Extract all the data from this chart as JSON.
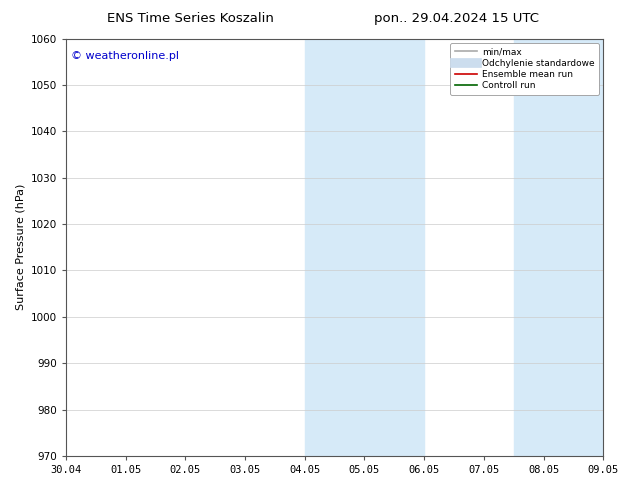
{
  "title_left": "ENS Time Series Koszalin",
  "title_right": "pon.. 29.04.2024 15 UTC",
  "ylabel": "Surface Pressure (hPa)",
  "ylim": [
    970,
    1060
  ],
  "yticks": [
    970,
    980,
    990,
    1000,
    1010,
    1020,
    1030,
    1040,
    1050,
    1060
  ],
  "xtick_labels": [
    "30.04",
    "01.05",
    "02.05",
    "03.05",
    "04.05",
    "05.05",
    "06.05",
    "07.05",
    "08.05",
    "09.05"
  ],
  "background_color": "#ffffff",
  "plot_bg_color": "#ffffff",
  "shaded_regions": [
    {
      "xstart": 4.0,
      "xend": 6.0,
      "color": "#d6eaf8"
    },
    {
      "xstart": 7.5,
      "xend": 9.0,
      "color": "#d6eaf8"
    }
  ],
  "watermark_text": "© weatheronline.pl",
  "watermark_color": "#0000cc",
  "legend_items": [
    {
      "label": "min/max",
      "color": "#aaaaaa",
      "lw": 1.2,
      "style": "solid"
    },
    {
      "label": "Odchylenie standardowe",
      "color": "#ccddee",
      "lw": 7,
      "style": "solid"
    },
    {
      "label": "Ensemble mean run",
      "color": "#cc0000",
      "lw": 1.2,
      "style": "solid"
    },
    {
      "label": "Controll run",
      "color": "#006400",
      "lw": 1.2,
      "style": "solid"
    }
  ],
  "title_fontsize": 9.5,
  "tick_fontsize": 7.5,
  "ylabel_fontsize": 8,
  "watermark_fontsize": 8,
  "legend_fontsize": 6.5
}
